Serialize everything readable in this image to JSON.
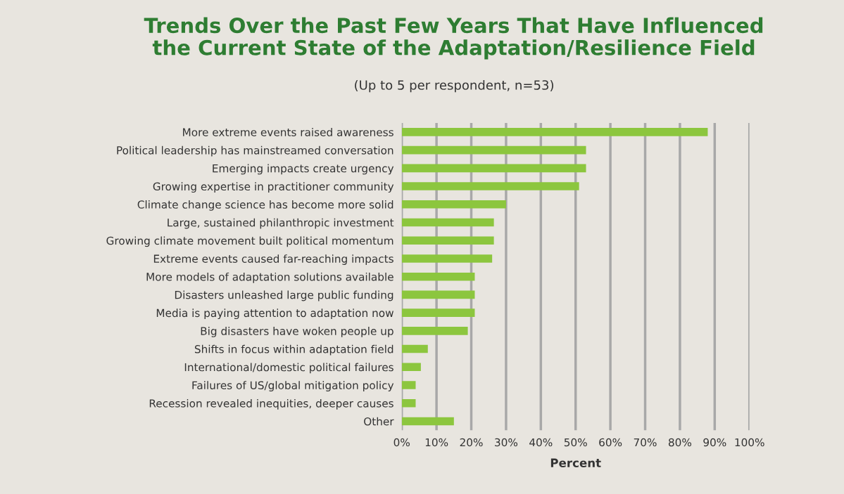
{
  "chart_data": {
    "type": "bar",
    "orientation": "horizontal",
    "title": "Trends Over the Past Few Years That Have Influenced\nthe Current State of the Adaptation/Resilience Field",
    "subtitle": "(Up to 5 per respondent, n=53)",
    "xlabel": "Percent",
    "categories": [
      "More extreme events raised awareness",
      "Political leadership has mainstreamed conversation",
      "Emerging impacts create urgency",
      "Growing expertise in practitioner community",
      "Climate change science has become more solid",
      "Large, sustained philanthropic investment",
      "Growing climate movement built political momentum",
      "Extreme events caused far-reaching impacts",
      "More models of adaptation solutions available",
      "Disasters unleashed large public funding",
      "Media is paying attention to adaptation now",
      "Big disasters have woken people up",
      "Shifts in focus within adaptation field",
      "International/domestic political failures",
      "Failures of US/global mitigation policy",
      "Recession revealed inequities, deeper causes",
      "Other"
    ],
    "values": [
      88,
      53,
      53,
      51,
      30,
      26.5,
      26.5,
      26,
      21,
      21,
      21,
      19,
      7.5,
      5.5,
      4,
      4,
      15
    ],
    "color": "#8cc63e",
    "xlim": [
      0,
      100
    ],
    "xticks": [
      {
        "value": 0,
        "label": "0%"
      },
      {
        "value": 10,
        "label": "10%"
      },
      {
        "value": 20,
        "label": "20%"
      },
      {
        "value": 30,
        "label": "30%"
      },
      {
        "value": 40,
        "label": "40%"
      },
      {
        "value": 50,
        "label": "50%"
      },
      {
        "value": 60,
        "label": "60%"
      },
      {
        "value": 70,
        "label": "70%"
      },
      {
        "value": 80,
        "label": "80%"
      },
      {
        "value": 90,
        "label": "90%"
      },
      {
        "value": 100,
        "label": "100%"
      }
    ],
    "grid": "x"
  }
}
